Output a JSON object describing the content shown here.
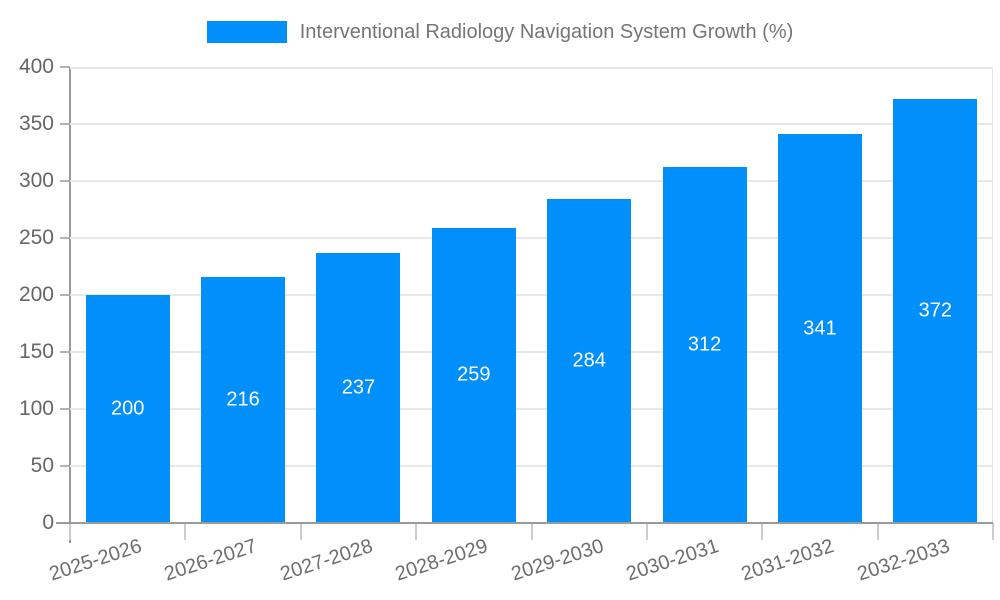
{
  "legend": {
    "label": "Interventional Radiology Navigation System Growth (%)"
  },
  "colors": {
    "bar": "#008FFB",
    "value_label": "#ffffff",
    "axis_label": "#666666",
    "legend_text": "#757575",
    "gridline": "#e8e8e8",
    "axis_line": "#9a9a9a"
  },
  "chart_data": {
    "type": "bar",
    "title": "",
    "legend_label": "Interventional Radiology Navigation System Growth (%)",
    "legend_position": "top",
    "grid": true,
    "categories": [
      "2025-2026",
      "2026-2027",
      "2027-2028",
      "2028-2029",
      "2029-2030",
      "2030-2031",
      "2031-2032",
      "2032-2033"
    ],
    "values": [
      200,
      216,
      237,
      259,
      284,
      312,
      341,
      372
    ],
    "xlabel": "",
    "ylabel": "",
    "ylim": [
      0,
      400
    ],
    "yticks": [
      0,
      50,
      100,
      150,
      200,
      250,
      300,
      350,
      400
    ]
  }
}
